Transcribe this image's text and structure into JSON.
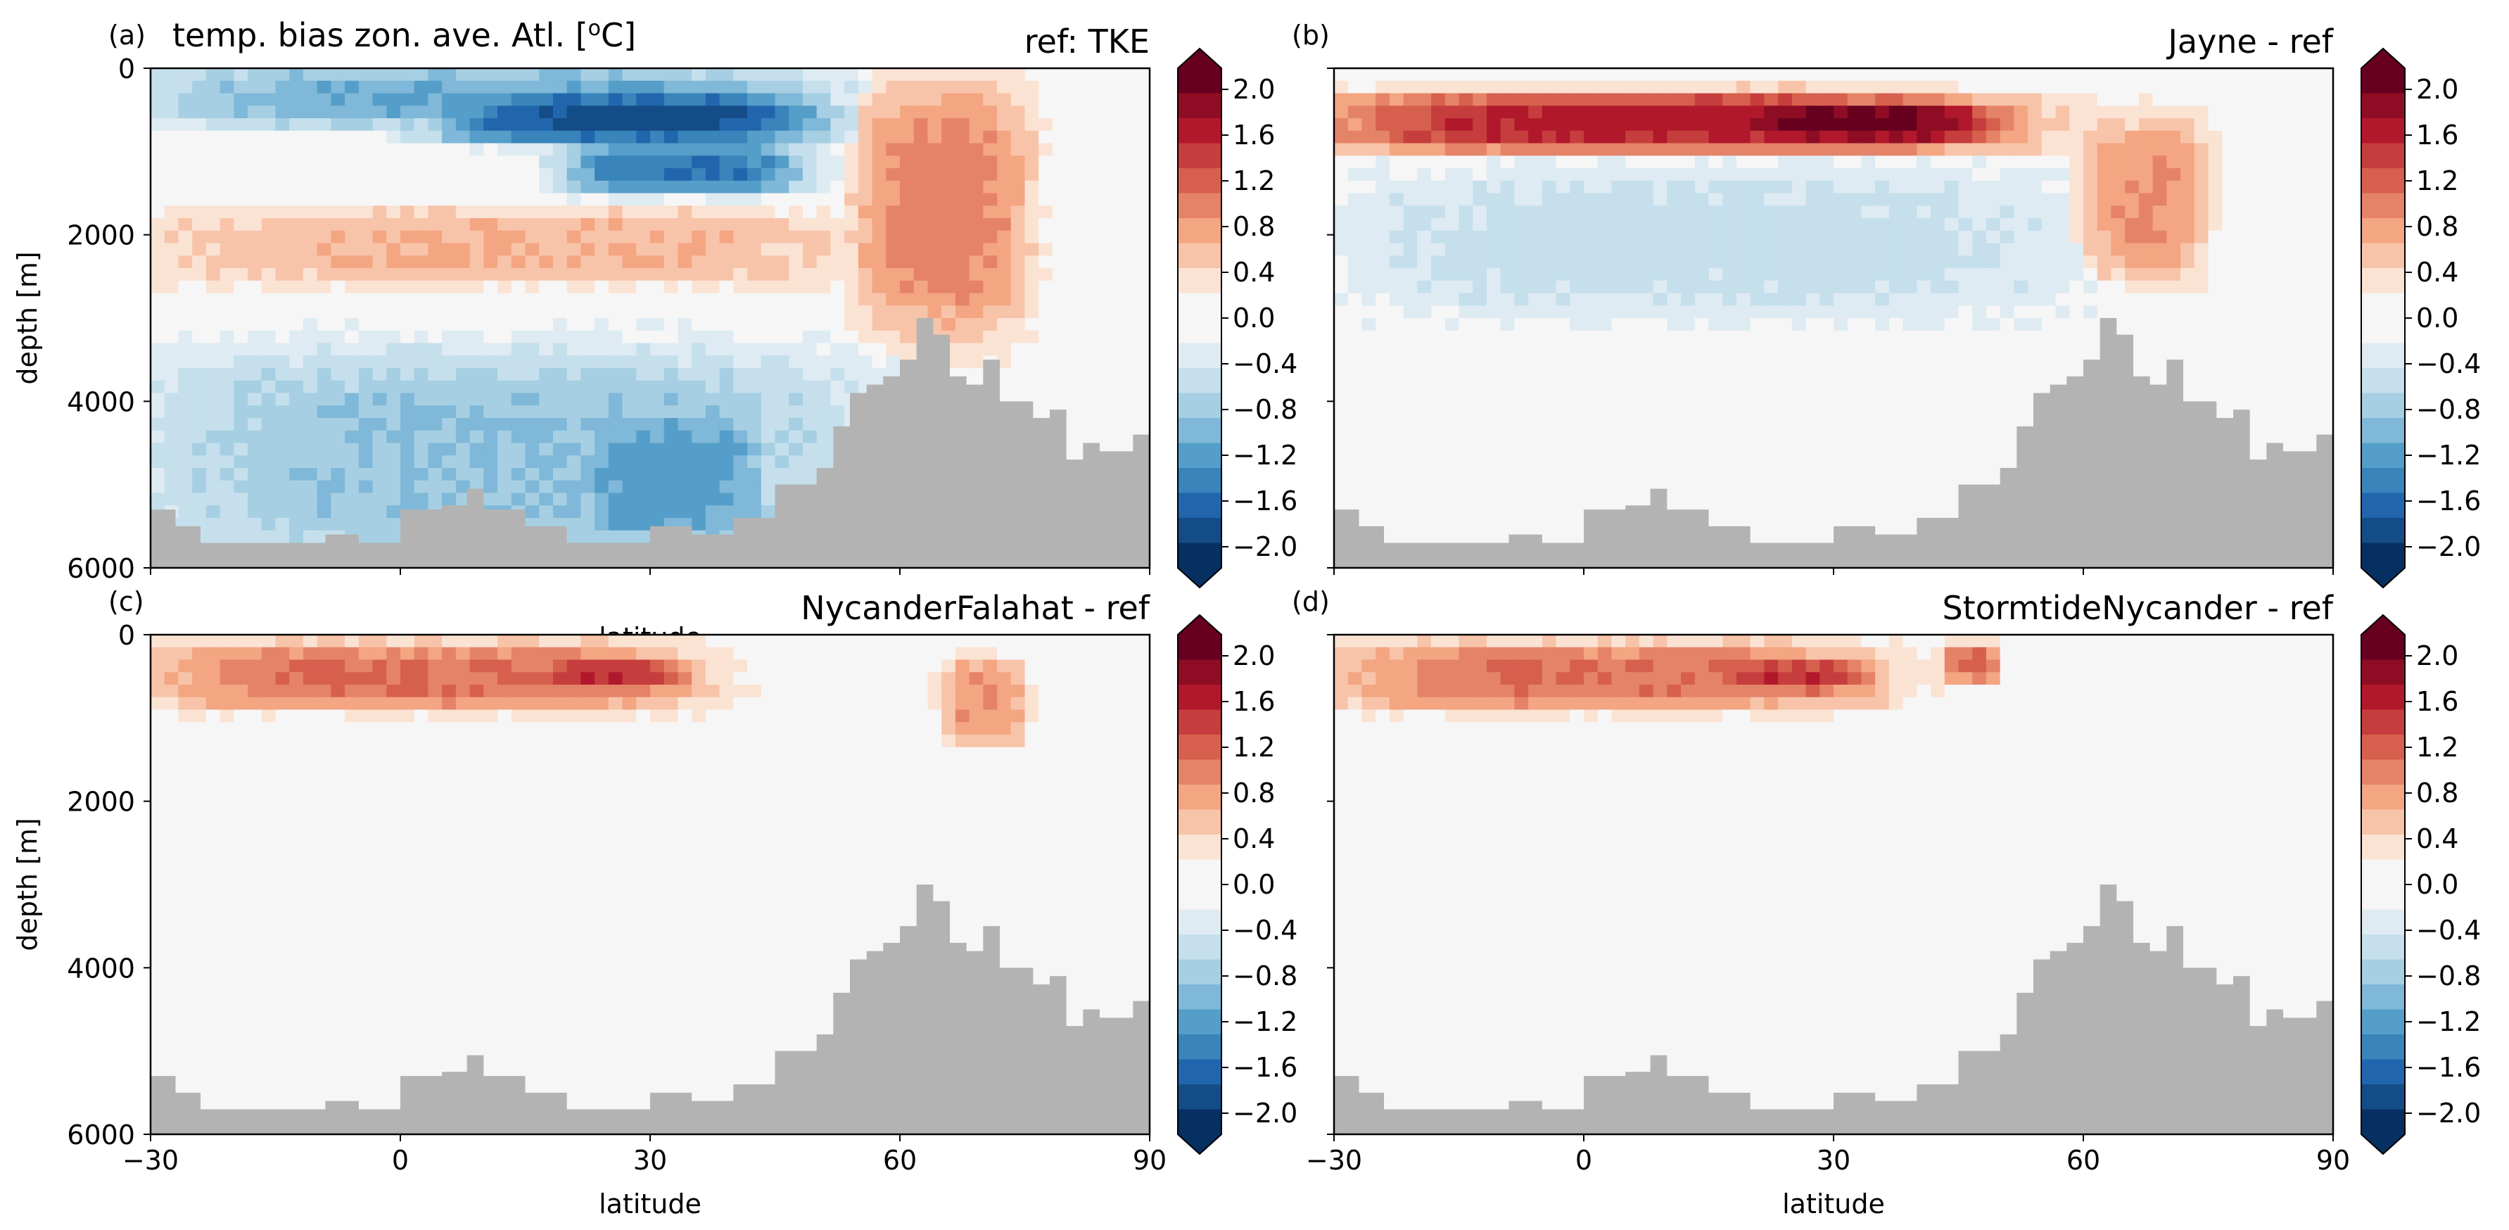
{
  "figure": {
    "main_title": "temp. bias zon. ave. Atl. [$^o$C]",
    "main_title_display": "temp. bias zon. ave. Atl. [",
    "main_title_sup": "o",
    "main_title_end": "C]",
    "ylabel": "depth [m]",
    "xlabel": "latitude"
  },
  "colorbar": {
    "ticks": [
      "2.0",
      "1.6",
      "1.2",
      "0.8",
      "0.4",
      "0.0",
      "−0.4",
      "−0.8",
      "−1.2",
      "−1.6",
      "−2.0"
    ],
    "colors": [
      "#67001f",
      "#8f0c25",
      "#b2182b",
      "#c53e3d",
      "#d6604d",
      "#e58368",
      "#f4a582",
      "#f8c4a9",
      "#fbe3d4",
      "#f6f6f6",
      "#f6f6f6",
      "#deebf2",
      "#c5dfec",
      "#a6cfe3",
      "#7fb8d8",
      "#559ec9",
      "#3884bb",
      "#2166ac",
      "#144c87",
      "#053061"
    ],
    "extend": "both"
  },
  "chart_data": [
    {
      "type": "heatmap",
      "label": "(a)",
      "title": "ref: TKE",
      "xlabel": "latitude",
      "ylabel": "depth [m]",
      "xlim": [
        -30,
        90
      ],
      "ylim": [
        6000,
        0
      ],
      "xticks": [
        -30,
        0,
        30,
        60,
        90
      ],
      "yticks": [
        0,
        2000,
        4000,
        6000
      ],
      "vlim": [
        -2.0,
        2.0
      ],
      "features": [
        {
          "lat": [
            -30,
            50
          ],
          "depth": [
            0,
            700
          ],
          "value": -1.0
        },
        {
          "lat": [
            5,
            50
          ],
          "depth": [
            300,
            900
          ],
          "value": -1.7
        },
        {
          "lat": [
            20,
            48
          ],
          "depth": [
            900,
            1500
          ],
          "value": -1.4
        },
        {
          "lat": [
            -30,
            55
          ],
          "depth": [
            1700,
            2600
          ],
          "value": 0.6
        },
        {
          "lat": [
            55,
            75
          ],
          "depth": [
            200,
            3200
          ],
          "value": 0.9
        },
        {
          "lat": [
            -30,
            55
          ],
          "depth": [
            3400,
            6000
          ],
          "value": -0.8
        },
        {
          "lat": [
            20,
            45
          ],
          "depth": [
            4000,
            5800
          ],
          "value": -1.1
        }
      ]
    },
    {
      "type": "heatmap",
      "label": "(b)",
      "title": "Jayne - ref",
      "xlim": [
        -30,
        90
      ],
      "ylim": [
        6000,
        0
      ],
      "xticks": [
        -30,
        0,
        30,
        60,
        90
      ],
      "yticks": [
        0,
        2000,
        4000,
        6000
      ],
      "vlim": [
        -2.0,
        2.0
      ],
      "features": [
        {
          "lat": [
            -30,
            50
          ],
          "depth": [
            300,
            1000
          ],
          "value": 1.5
        },
        {
          "lat": [
            15,
            50
          ],
          "depth": [
            400,
            900
          ],
          "value": 1.9
        },
        {
          "lat": [
            60,
            75
          ],
          "depth": [
            600,
            2500
          ],
          "value": 0.8
        },
        {
          "lat": [
            -30,
            60
          ],
          "depth": [
            1200,
            3000
          ],
          "value": -0.5
        },
        {
          "lat": [
            -30,
            90
          ],
          "depth": [
            3000,
            6000
          ],
          "value": -0.1
        }
      ]
    },
    {
      "type": "heatmap",
      "label": "(c)",
      "title": "NycanderFalahat - ref",
      "xlabel": "latitude",
      "ylabel": "depth [m]",
      "xlim": [
        -30,
        90
      ],
      "ylim": [
        6000,
        0
      ],
      "xticks": [
        -30,
        0,
        30,
        60,
        90
      ],
      "yticks": [
        0,
        2000,
        4000,
        6000
      ],
      "vlim": [
        -2.0,
        2.0
      ],
      "features": [
        {
          "lat": [
            -30,
            35
          ],
          "depth": [
            100,
            900
          ],
          "value": 1.0
        },
        {
          "lat": [
            15,
            35
          ],
          "depth": [
            300,
            700
          ],
          "value": 1.4
        },
        {
          "lat": [
            65,
            75
          ],
          "depth": [
            300,
            1300
          ],
          "value": 0.8
        },
        {
          "lat": [
            -30,
            90
          ],
          "depth": [
            1800,
            6000
          ],
          "value": 0.1
        }
      ]
    },
    {
      "type": "heatmap",
      "label": "(d)",
      "title": "StormtideNycander - ref",
      "xlabel": "latitude",
      "xlim": [
        -30,
        90
      ],
      "ylim": [
        6000,
        0
      ],
      "xticks": [
        -30,
        0,
        30,
        60,
        90
      ],
      "yticks": [
        0,
        2000,
        4000,
        6000
      ],
      "vlim": [
        -2.0,
        2.0
      ],
      "features": [
        {
          "lat": [
            -30,
            35
          ],
          "depth": [
            100,
            900
          ],
          "value": 1.0
        },
        {
          "lat": [
            15,
            35
          ],
          "depth": [
            300,
            700
          ],
          "value": 1.4
        },
        {
          "lat": [
            43,
            50
          ],
          "depth": [
            100,
            600
          ],
          "value": 1.0
        },
        {
          "lat": [
            -30,
            90
          ],
          "depth": [
            1800,
            6000
          ],
          "value": 0.1
        }
      ]
    }
  ],
  "bathymetry": {
    "mask_color": "#b3b3b3",
    "lat": [
      -30,
      -27,
      -24,
      -21,
      -18,
      -15,
      -12,
      -9,
      -5,
      0,
      5,
      8,
      10,
      15,
      20,
      25,
      30,
      35,
      40,
      45,
      50,
      52,
      54,
      56,
      58,
      60,
      62,
      64,
      66,
      68,
      70,
      72,
      74,
      76,
      78,
      80,
      82,
      84,
      86,
      88,
      90
    ],
    "depth": [
      5300,
      5500,
      5700,
      5700,
      5700,
      5700,
      5700,
      5600,
      5700,
      5300,
      5250,
      5050,
      5300,
      5500,
      5700,
      5700,
      5500,
      5600,
      5400,
      5000,
      4800,
      4300,
      3900,
      3800,
      3700,
      3500,
      3000,
      3200,
      3700,
      3800,
      3500,
      4000,
      4000,
      4200,
      4100,
      4700,
      4500,
      4600,
      4600,
      4400,
      4300
    ]
  }
}
